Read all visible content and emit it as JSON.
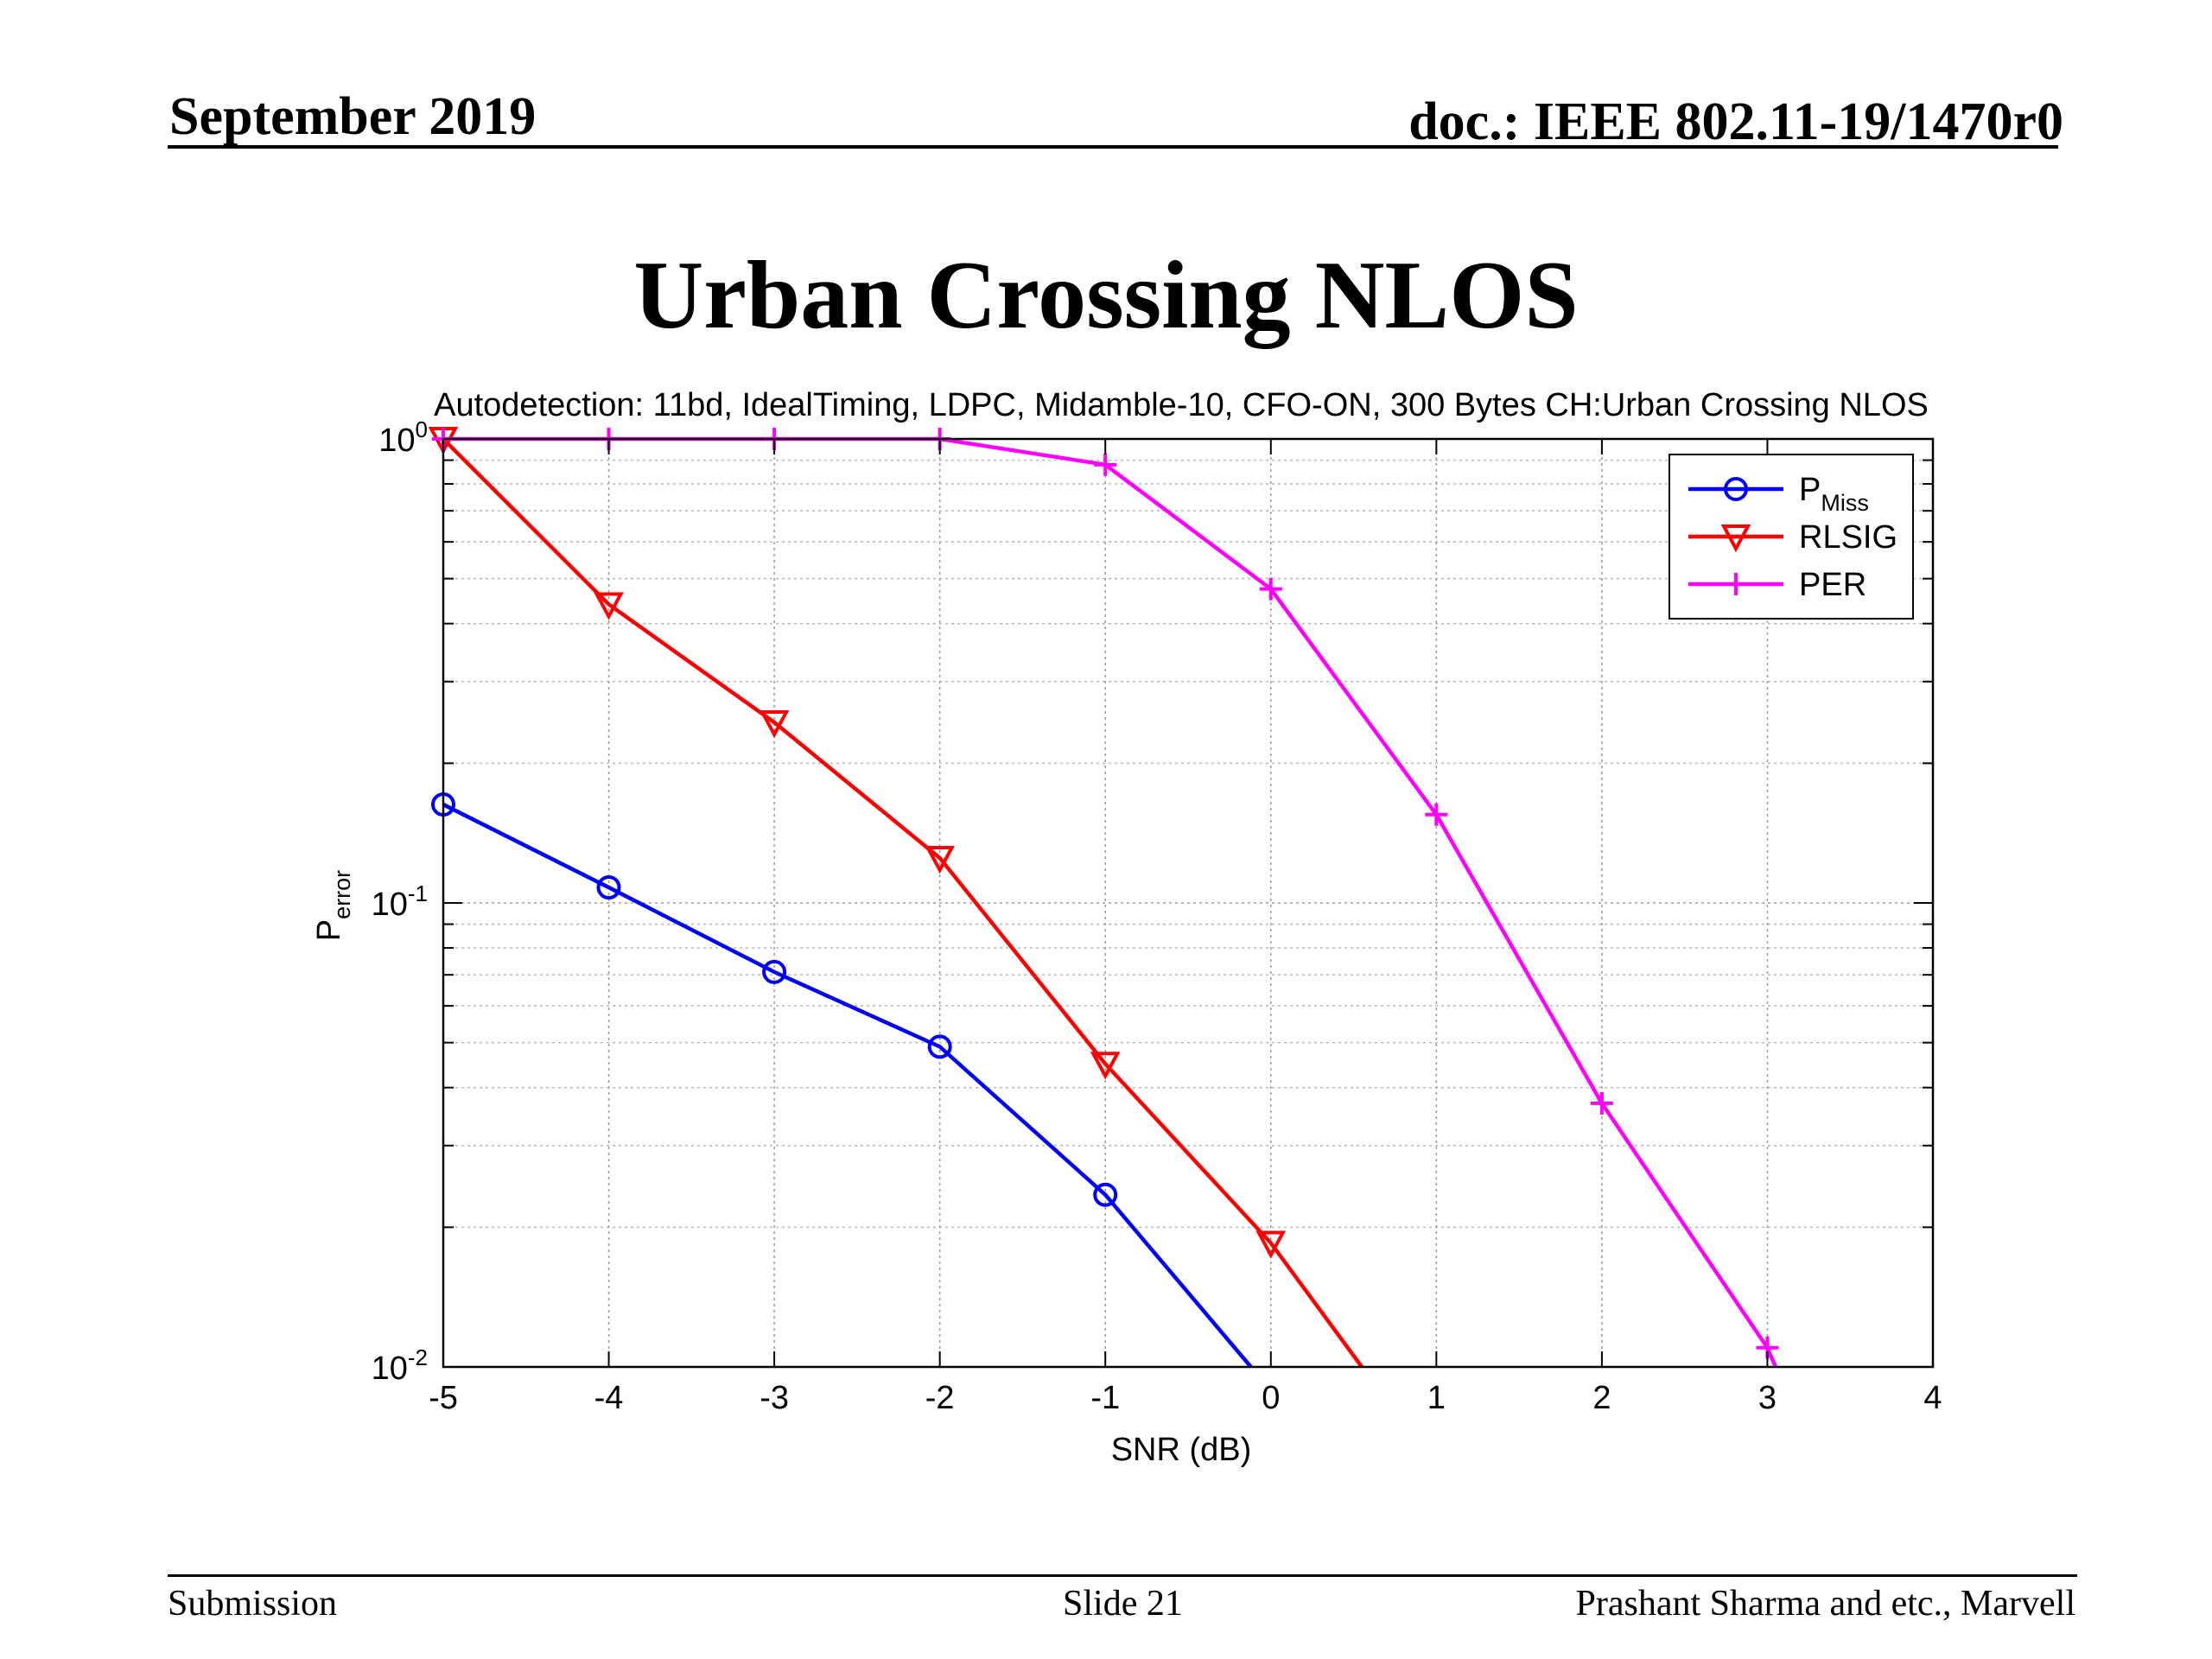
{
  "slide": {
    "date": "September 2019",
    "doc_id": "doc.: IEEE 802.11-19/1470r0",
    "title": "Urban Crossing NLOS",
    "footer_left": "Submission",
    "footer_center": "Slide 21",
    "footer_right": "Prashant Sharma and etc., Marvell"
  },
  "chart_data": {
    "type": "line",
    "title": "Autodetection: 11bd, IdealTiming, LDPC, Midamble-10, CFO-ON, 300 Bytes CH:Urban Crossing NLOS",
    "xlabel": "SNR (dB)",
    "ylabel_main": "P",
    "ylabel_sub": "error",
    "xlim": [
      -5,
      4
    ],
    "ylim": [
      0.01,
      1
    ],
    "yscale": "log",
    "grid": true,
    "legend_position": "top-right",
    "x_ticks": [
      -5,
      -4,
      -3,
      -2,
      -1,
      0,
      1,
      2,
      3,
      4
    ],
    "y_ticks": [
      {
        "value": 1,
        "base": "10",
        "exp": "0"
      },
      {
        "value": 0.1,
        "base": "10",
        "exp": "-1"
      },
      {
        "value": 0.01,
        "base": "10",
        "exp": "-2"
      }
    ],
    "series": [
      {
        "name": "P",
        "name_sub": "Miss",
        "color": "#0000ff",
        "marker": "circle",
        "points": [
          [
            -5,
            0.163
          ],
          [
            -4,
            0.108
          ],
          [
            -3,
            0.071
          ],
          [
            -2,
            0.049
          ],
          [
            -1,
            0.0235
          ],
          [
            -0.12,
            0.01
          ]
        ],
        "marked": [
          true,
          true,
          true,
          true,
          true,
          false
        ]
      },
      {
        "name": "RLSIG",
        "name_sub": "",
        "color": "#ff0000",
        "marker": "triangle-down",
        "points": [
          [
            -5,
            1.0
          ],
          [
            -4,
            0.44
          ],
          [
            -3,
            0.245
          ],
          [
            -2,
            0.125
          ],
          [
            -1,
            0.045
          ],
          [
            0,
            0.0185
          ],
          [
            0.55,
            0.01
          ]
        ],
        "marked": [
          true,
          true,
          true,
          true,
          true,
          true,
          false
        ]
      },
      {
        "name": "PER",
        "name_sub": "",
        "color": "#ff00ff",
        "marker": "plus",
        "points": [
          [
            -5,
            1.0
          ],
          [
            -4,
            1.0
          ],
          [
            -3,
            1.0
          ],
          [
            -2,
            1.0
          ],
          [
            -1,
            0.88
          ],
          [
            0,
            0.475
          ],
          [
            1,
            0.155
          ],
          [
            2,
            0.037
          ],
          [
            3,
            0.011
          ],
          [
            3.05,
            0.01
          ]
        ],
        "marked": [
          true,
          true,
          true,
          true,
          true,
          true,
          true,
          true,
          true,
          false
        ]
      }
    ]
  }
}
